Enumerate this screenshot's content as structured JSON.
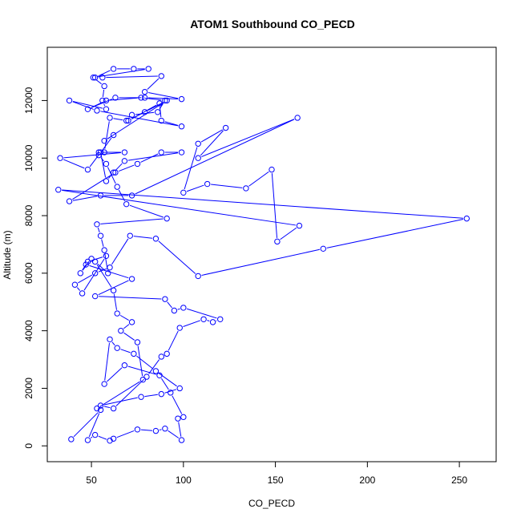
{
  "chart_data": {
    "type": "line",
    "title": "ATOM1 Southbound CO_PECD",
    "xlabel": "CO_PECD",
    "ylabel": "Altitude (m)",
    "xlim": [
      26,
      270
    ],
    "ylim": [
      -550,
      13850
    ],
    "x_ticks": [
      50,
      100,
      150,
      200,
      250
    ],
    "x_tick_labels": [
      "50",
      "100",
      "150",
      "200",
      "250"
    ],
    "y_ticks": [
      0,
      2000,
      4000,
      6000,
      8000,
      10000,
      12000
    ],
    "y_tick_labels": [
      "0",
      "2000",
      "4000",
      "6000",
      "8000",
      "10000",
      "12000"
    ],
    "grid": false,
    "legend": "none",
    "color": "#0000ff",
    "series": [
      {
        "x": [
          39,
          55,
          48,
          52,
          60,
          62,
          75,
          85,
          90,
          99,
          97,
          100,
          93,
          87,
          68,
          57,
          60,
          64,
          73,
          85,
          98,
          88,
          77,
          55,
          62,
          80,
          88,
          91,
          98,
          111,
          116,
          120,
          100,
          95,
          90,
          52,
          72,
          47,
          50,
          44,
          48,
          58,
          45,
          41,
          52,
          60,
          71,
          85,
          108,
          176,
          254,
          32,
          163,
          151,
          148,
          134,
          113,
          100,
          108,
          123,
          108,
          162,
          72,
          55,
          38,
          63,
          75,
          88,
          99,
          68,
          62,
          58,
          55,
          48,
          33,
          68,
          54,
          57,
          60,
          69,
          72,
          86,
          90,
          77,
          58,
          48,
          63,
          79,
          99,
          79,
          88,
          56,
          52,
          62,
          73,
          81,
          51,
          57,
          56,
          58,
          38,
          53,
          99,
          88,
          87,
          70,
          79,
          91,
          57,
          62,
          54,
          58,
          64,
          69,
          91,
          53,
          55,
          57,
          59,
          52,
          62,
          64,
          72,
          66,
          75,
          78,
          53
        ],
        "y": [
          230,
          1250,
          200,
          380,
          180,
          250,
          570,
          520,
          600,
          200,
          950,
          1000,
          1850,
          2450,
          2800,
          2150,
          3700,
          3400,
          3200,
          2600,
          2000,
          1800,
          1700,
          1400,
          1300,
          2400,
          3100,
          3200,
          4100,
          4400,
          4300,
          4400,
          4800,
          4700,
          5100,
          5200,
          5800,
          6300,
          6500,
          6000,
          6400,
          6600,
          5300,
          5600,
          6000,
          6200,
          7300,
          7200,
          5900,
          6850,
          7900,
          8900,
          7650,
          7100,
          9600,
          8950,
          9100,
          8800,
          10500,
          11050,
          10000,
          11400,
          8700,
          8700,
          8500,
          9500,
          9800,
          10200,
          10200,
          9900,
          9500,
          9200,
          10200,
          9600,
          10000,
          10200,
          10200,
          10200,
          11400,
          11300,
          11500,
          11600,
          12000,
          12100,
          12000,
          11700,
          12100,
          12100,
          12050,
          12300,
          12850,
          12800,
          12800,
          13100,
          13100,
          13100,
          12800,
          12500,
          12000,
          11700,
          12000,
          11650,
          11100,
          11300,
          11900,
          11300,
          11600,
          12000,
          10600,
          10800,
          10100,
          9800,
          9000,
          8400,
          7900,
          7700,
          7300,
          6800,
          6000,
          6400,
          5400,
          4600,
          4300,
          4000,
          3600,
          2300,
          1300
        ]
      }
    ]
  }
}
